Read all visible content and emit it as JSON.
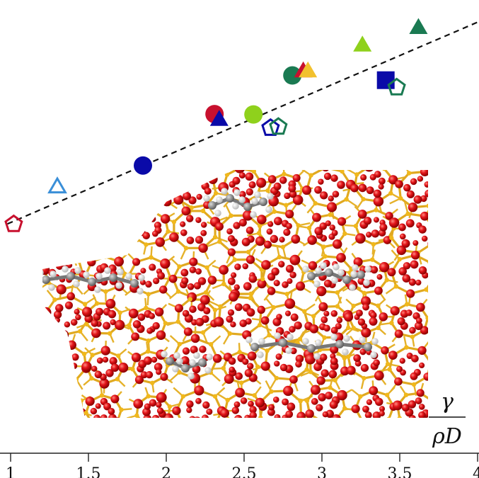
{
  "chart_data": {
    "type": "scatter",
    "title": "",
    "xlabel_numerator": "γ",
    "xlabel_denominator": "ρD",
    "xlim": [
      0.95,
      4.0
    ],
    "ylim": [
      0,
      100
    ],
    "x_ticks": [
      1,
      1.5,
      2,
      2.5,
      3,
      3.5,
      4
    ],
    "x_tick_labels": [
      "1",
      "1.5",
      "2",
      "2.5",
      "3",
      "3.5",
      "4"
    ],
    "grid": false,
    "legend": "none",
    "background_image": "zeolite molecular structure (red oxygen, yellow silicon, gray/white hydrocarbon)",
    "fit_line": {
      "style": "dashed",
      "color": "#111111",
      "points": [
        [
          0.98,
          42.5
        ],
        [
          4.0,
          97.8
        ]
      ]
    },
    "points": [
      {
        "x": 1.02,
        "y": 42.4,
        "marker": "pentagon-open",
        "color": "#c8102e"
      },
      {
        "x": 1.3,
        "y": 52.8,
        "marker": "triangle-open",
        "color": "#3a8fd8"
      },
      {
        "x": 1.85,
        "y": 58.5,
        "marker": "circle",
        "color": "#0a0aa8"
      },
      {
        "x": 2.31,
        "y": 72.6,
        "marker": "circle",
        "color": "#c8102e"
      },
      {
        "x": 2.34,
        "y": 71.2,
        "marker": "triangle",
        "color": "#0a0aa8"
      },
      {
        "x": 2.56,
        "y": 72.5,
        "marker": "circle",
        "color": "#8fd11c"
      },
      {
        "x": 2.67,
        "y": 68.8,
        "marker": "pentagon-open",
        "color": "#0a0aa8"
      },
      {
        "x": 2.72,
        "y": 69.1,
        "marker": "pentagon-open",
        "color": "#1a7a52"
      },
      {
        "x": 2.81,
        "y": 83.2,
        "marker": "circle",
        "color": "#1a7a52"
      },
      {
        "x": 2.88,
        "y": 84.5,
        "marker": "triangle",
        "color": "#c8102e"
      },
      {
        "x": 2.91,
        "y": 84.5,
        "marker": "triangle",
        "color": "#f2c12e"
      },
      {
        "x": 3.26,
        "y": 91.6,
        "marker": "triangle",
        "color": "#8fd11c"
      },
      {
        "x": 3.41,
        "y": 81.9,
        "marker": "square",
        "color": "#0a0aa8"
      },
      {
        "x": 3.48,
        "y": 79.9,
        "marker": "pentagon-open",
        "color": "#1a7a52"
      },
      {
        "x": 3.62,
        "y": 96.4,
        "marker": "triangle",
        "color": "#1a7a52"
      }
    ]
  }
}
